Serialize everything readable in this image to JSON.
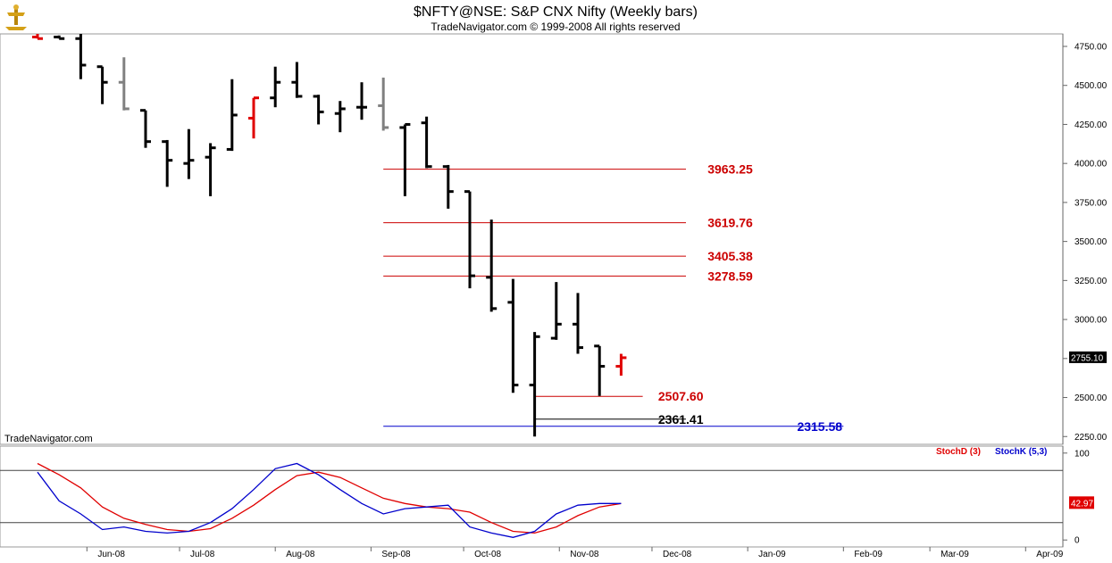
{
  "header": {
    "title": "$NFTY@NSE:  S&P CNX Nifty  (Weekly bars)",
    "subtitle": "TradeNavigator.com © 1999-2008 All rights reserved"
  },
  "watermark": "TradeNavigator.com",
  "colors": {
    "up_bar": "#000000",
    "gray_bar": "#808080",
    "red_bar": "#e00000",
    "fib_line": "#cc0000",
    "blue_line": "#0000cc",
    "stoch_d": "#e00000",
    "stoch_k": "#0000cc"
  },
  "chart_data": [
    {
      "type": "ohlc",
      "title": "$NFTY@NSE:  S&P CNX Nifty  (Weekly bars)",
      "x_ticks": [
        "Jun-08",
        "Jul-08",
        "Aug-08",
        "Sep-08",
        "Oct-08",
        "Nov-08",
        "Dec-08",
        "Jan-09",
        "Feb-09",
        "Mar-09",
        "Apr-09"
      ],
      "y_ticks": [
        "4750.00",
        "4500.00",
        "4250.00",
        "4000.00",
        "3750.00",
        "3500.00",
        "3250.00",
        "3000.00",
        "2750.00",
        "2500.00",
        "2250.00"
      ],
      "ylim": [
        2200,
        4830
      ],
      "last_price": "2755.10",
      "bars": [
        {
          "date": "2008-05-16",
          "open": 4810,
          "high": 4830,
          "low": 4800,
          "close": 4800,
          "color": "red"
        },
        {
          "date": "2008-05-23",
          "open": 4810,
          "high": 4820,
          "low": 4800,
          "close": 4800,
          "color": "black"
        },
        {
          "date": "2008-05-30",
          "open": 4800,
          "high": 4830,
          "low": 4540,
          "close": 4630,
          "color": "black"
        },
        {
          "date": "2008-06-06",
          "open": 4620,
          "high": 4620,
          "low": 4380,
          "close": 4520,
          "color": "black"
        },
        {
          "date": "2008-06-13",
          "open": 4520,
          "high": 4680,
          "low": 4340,
          "close": 4350,
          "color": "gray"
        },
        {
          "date": "2008-06-20",
          "open": 4340,
          "high": 4340,
          "low": 4100,
          "close": 4140,
          "color": "black"
        },
        {
          "date": "2008-06-27",
          "open": 4140,
          "high": 4150,
          "low": 3850,
          "close": 4020,
          "color": "black"
        },
        {
          "date": "2008-07-04",
          "open": 4000,
          "high": 4220,
          "low": 3900,
          "close": 4020,
          "color": "black"
        },
        {
          "date": "2008-07-11",
          "open": 4040,
          "high": 4130,
          "low": 3790,
          "close": 4100,
          "color": "black"
        },
        {
          "date": "2008-07-18",
          "open": 4090,
          "high": 4540,
          "low": 4080,
          "close": 4310,
          "color": "black"
        },
        {
          "date": "2008-07-25",
          "open": 4290,
          "high": 4420,
          "low": 4160,
          "close": 4420,
          "color": "red"
        },
        {
          "date": "2008-08-01",
          "open": 4420,
          "high": 4620,
          "low": 4360,
          "close": 4520,
          "color": "black"
        },
        {
          "date": "2008-08-08",
          "open": 4520,
          "high": 4650,
          "low": 4420,
          "close": 4430,
          "color": "black"
        },
        {
          "date": "2008-08-15",
          "open": 4430,
          "high": 4440,
          "low": 4250,
          "close": 4330,
          "color": "black"
        },
        {
          "date": "2008-08-22",
          "open": 4320,
          "high": 4400,
          "low": 4200,
          "close": 4350,
          "color": "black"
        },
        {
          "date": "2008-08-29",
          "open": 4360,
          "high": 4520,
          "low": 4280,
          "close": 4360,
          "color": "black"
        },
        {
          "date": "2008-09-05",
          "open": 4370,
          "high": 4550,
          "low": 4210,
          "close": 4230,
          "color": "gray"
        },
        {
          "date": "2008-09-12",
          "open": 4230,
          "high": 4250,
          "low": 3790,
          "close": 4250,
          "color": "black"
        },
        {
          "date": "2008-09-19",
          "open": 4260,
          "high": 4300,
          "low": 3970,
          "close": 3980,
          "color": "black"
        },
        {
          "date": "2008-09-26",
          "open": 3980,
          "high": 3990,
          "low": 3710,
          "close": 3820,
          "color": "black"
        },
        {
          "date": "2008-10-03",
          "open": 3820,
          "high": 3820,
          "low": 3200,
          "close": 3280,
          "color": "black"
        },
        {
          "date": "2008-10-10",
          "open": 3270,
          "high": 3640,
          "low": 3050,
          "close": 3070,
          "color": "black"
        },
        {
          "date": "2008-10-17",
          "open": 3110,
          "high": 3260,
          "low": 2530,
          "close": 2580,
          "color": "black"
        },
        {
          "date": "2008-10-24",
          "open": 2580,
          "high": 2920,
          "low": 2250,
          "close": 2890,
          "color": "black"
        },
        {
          "date": "2008-10-31",
          "open": 2880,
          "high": 3240,
          "low": 2870,
          "close": 2970,
          "color": "black"
        },
        {
          "date": "2008-11-07",
          "open": 2970,
          "high": 3170,
          "low": 2780,
          "close": 2820,
          "color": "black"
        },
        {
          "date": "2008-11-14",
          "open": 2830,
          "high": 2830,
          "low": 2510,
          "close": 2700,
          "color": "black"
        },
        {
          "date": "2008-11-21",
          "open": 2700,
          "high": 2780,
          "low": 2640,
          "close": 2755,
          "color": "red"
        }
      ],
      "levels": [
        {
          "label": "3963.25",
          "value": 3963.25,
          "color": "#cc0000",
          "from": "2008-09-05",
          "to": "2008-12-12",
          "label_date": "2008-12-19"
        },
        {
          "label": "3619.76",
          "value": 3619.76,
          "color": "#cc0000",
          "from": "2008-09-05",
          "to": "2008-12-12",
          "label_date": "2008-12-19"
        },
        {
          "label": "3405.38",
          "value": 3405.38,
          "color": "#cc0000",
          "from": "2008-09-05",
          "to": "2008-12-12",
          "label_date": "2008-12-19"
        },
        {
          "label": "3278.59",
          "value": 3278.59,
          "color": "#cc0000",
          "from": "2008-09-05",
          "to": "2008-12-12",
          "label_date": "2008-12-19"
        },
        {
          "label": "2507.60",
          "value": 2507.6,
          "color": "#cc0000",
          "from": "2008-10-24",
          "to": "2008-11-28",
          "label_date": "2008-12-03"
        },
        {
          "label": "2361.41",
          "value": 2361.41,
          "color": "#000000",
          "from": "2008-10-24",
          "to": "2008-12-12",
          "label_date": "2008-12-03"
        },
        {
          "label": "2315.58",
          "value": 2315.58,
          "color": "#0000cc",
          "from": "2008-09-05",
          "to": "2009-02-01",
          "label_date": "2009-01-17"
        }
      ]
    },
    {
      "type": "line",
      "title": "",
      "legend": [
        "StochD (3)",
        "StochK (5,3)"
      ],
      "y_ticks": [
        "100",
        "0"
      ],
      "ylim": [
        -8,
        108
      ],
      "reference_lines": [
        80,
        20
      ],
      "last_value": "42.97",
      "series": [
        {
          "name": "StochD (3)",
          "color": "#e00000",
          "x": [
            "2008-05-16",
            "2008-05-23",
            "2008-05-30",
            "2008-06-06",
            "2008-06-13",
            "2008-06-20",
            "2008-06-27",
            "2008-07-04",
            "2008-07-11",
            "2008-07-18",
            "2008-07-25",
            "2008-08-01",
            "2008-08-08",
            "2008-08-15",
            "2008-08-22",
            "2008-08-29",
            "2008-09-05",
            "2008-09-12",
            "2008-09-19",
            "2008-09-26",
            "2008-10-03",
            "2008-10-10",
            "2008-10-17",
            "2008-10-24",
            "2008-10-31",
            "2008-11-07",
            "2008-11-14",
            "2008-11-21"
          ],
          "values": [
            88,
            75,
            60,
            38,
            25,
            18,
            12,
            10,
            13,
            25,
            40,
            58,
            74,
            78,
            72,
            60,
            48,
            42,
            38,
            36,
            32,
            20,
            10,
            8,
            15,
            28,
            38,
            42
          ]
        },
        {
          "name": "StochK (5,3)",
          "color": "#0000cc",
          "x": [
            "2008-05-16",
            "2008-05-23",
            "2008-05-30",
            "2008-06-06",
            "2008-06-13",
            "2008-06-20",
            "2008-06-27",
            "2008-07-04",
            "2008-07-11",
            "2008-07-18",
            "2008-07-25",
            "2008-08-01",
            "2008-08-08",
            "2008-08-15",
            "2008-08-22",
            "2008-08-29",
            "2008-09-05",
            "2008-09-12",
            "2008-09-19",
            "2008-09-26",
            "2008-10-03",
            "2008-10-10",
            "2008-10-17",
            "2008-10-24",
            "2008-10-31",
            "2008-11-07",
            "2008-11-14",
            "2008-11-21"
          ],
          "values": [
            78,
            45,
            30,
            12,
            15,
            10,
            8,
            10,
            20,
            36,
            58,
            82,
            88,
            75,
            58,
            42,
            30,
            36,
            38,
            40,
            15,
            8,
            3,
            10,
            30,
            40,
            42,
            42
          ]
        }
      ]
    }
  ]
}
